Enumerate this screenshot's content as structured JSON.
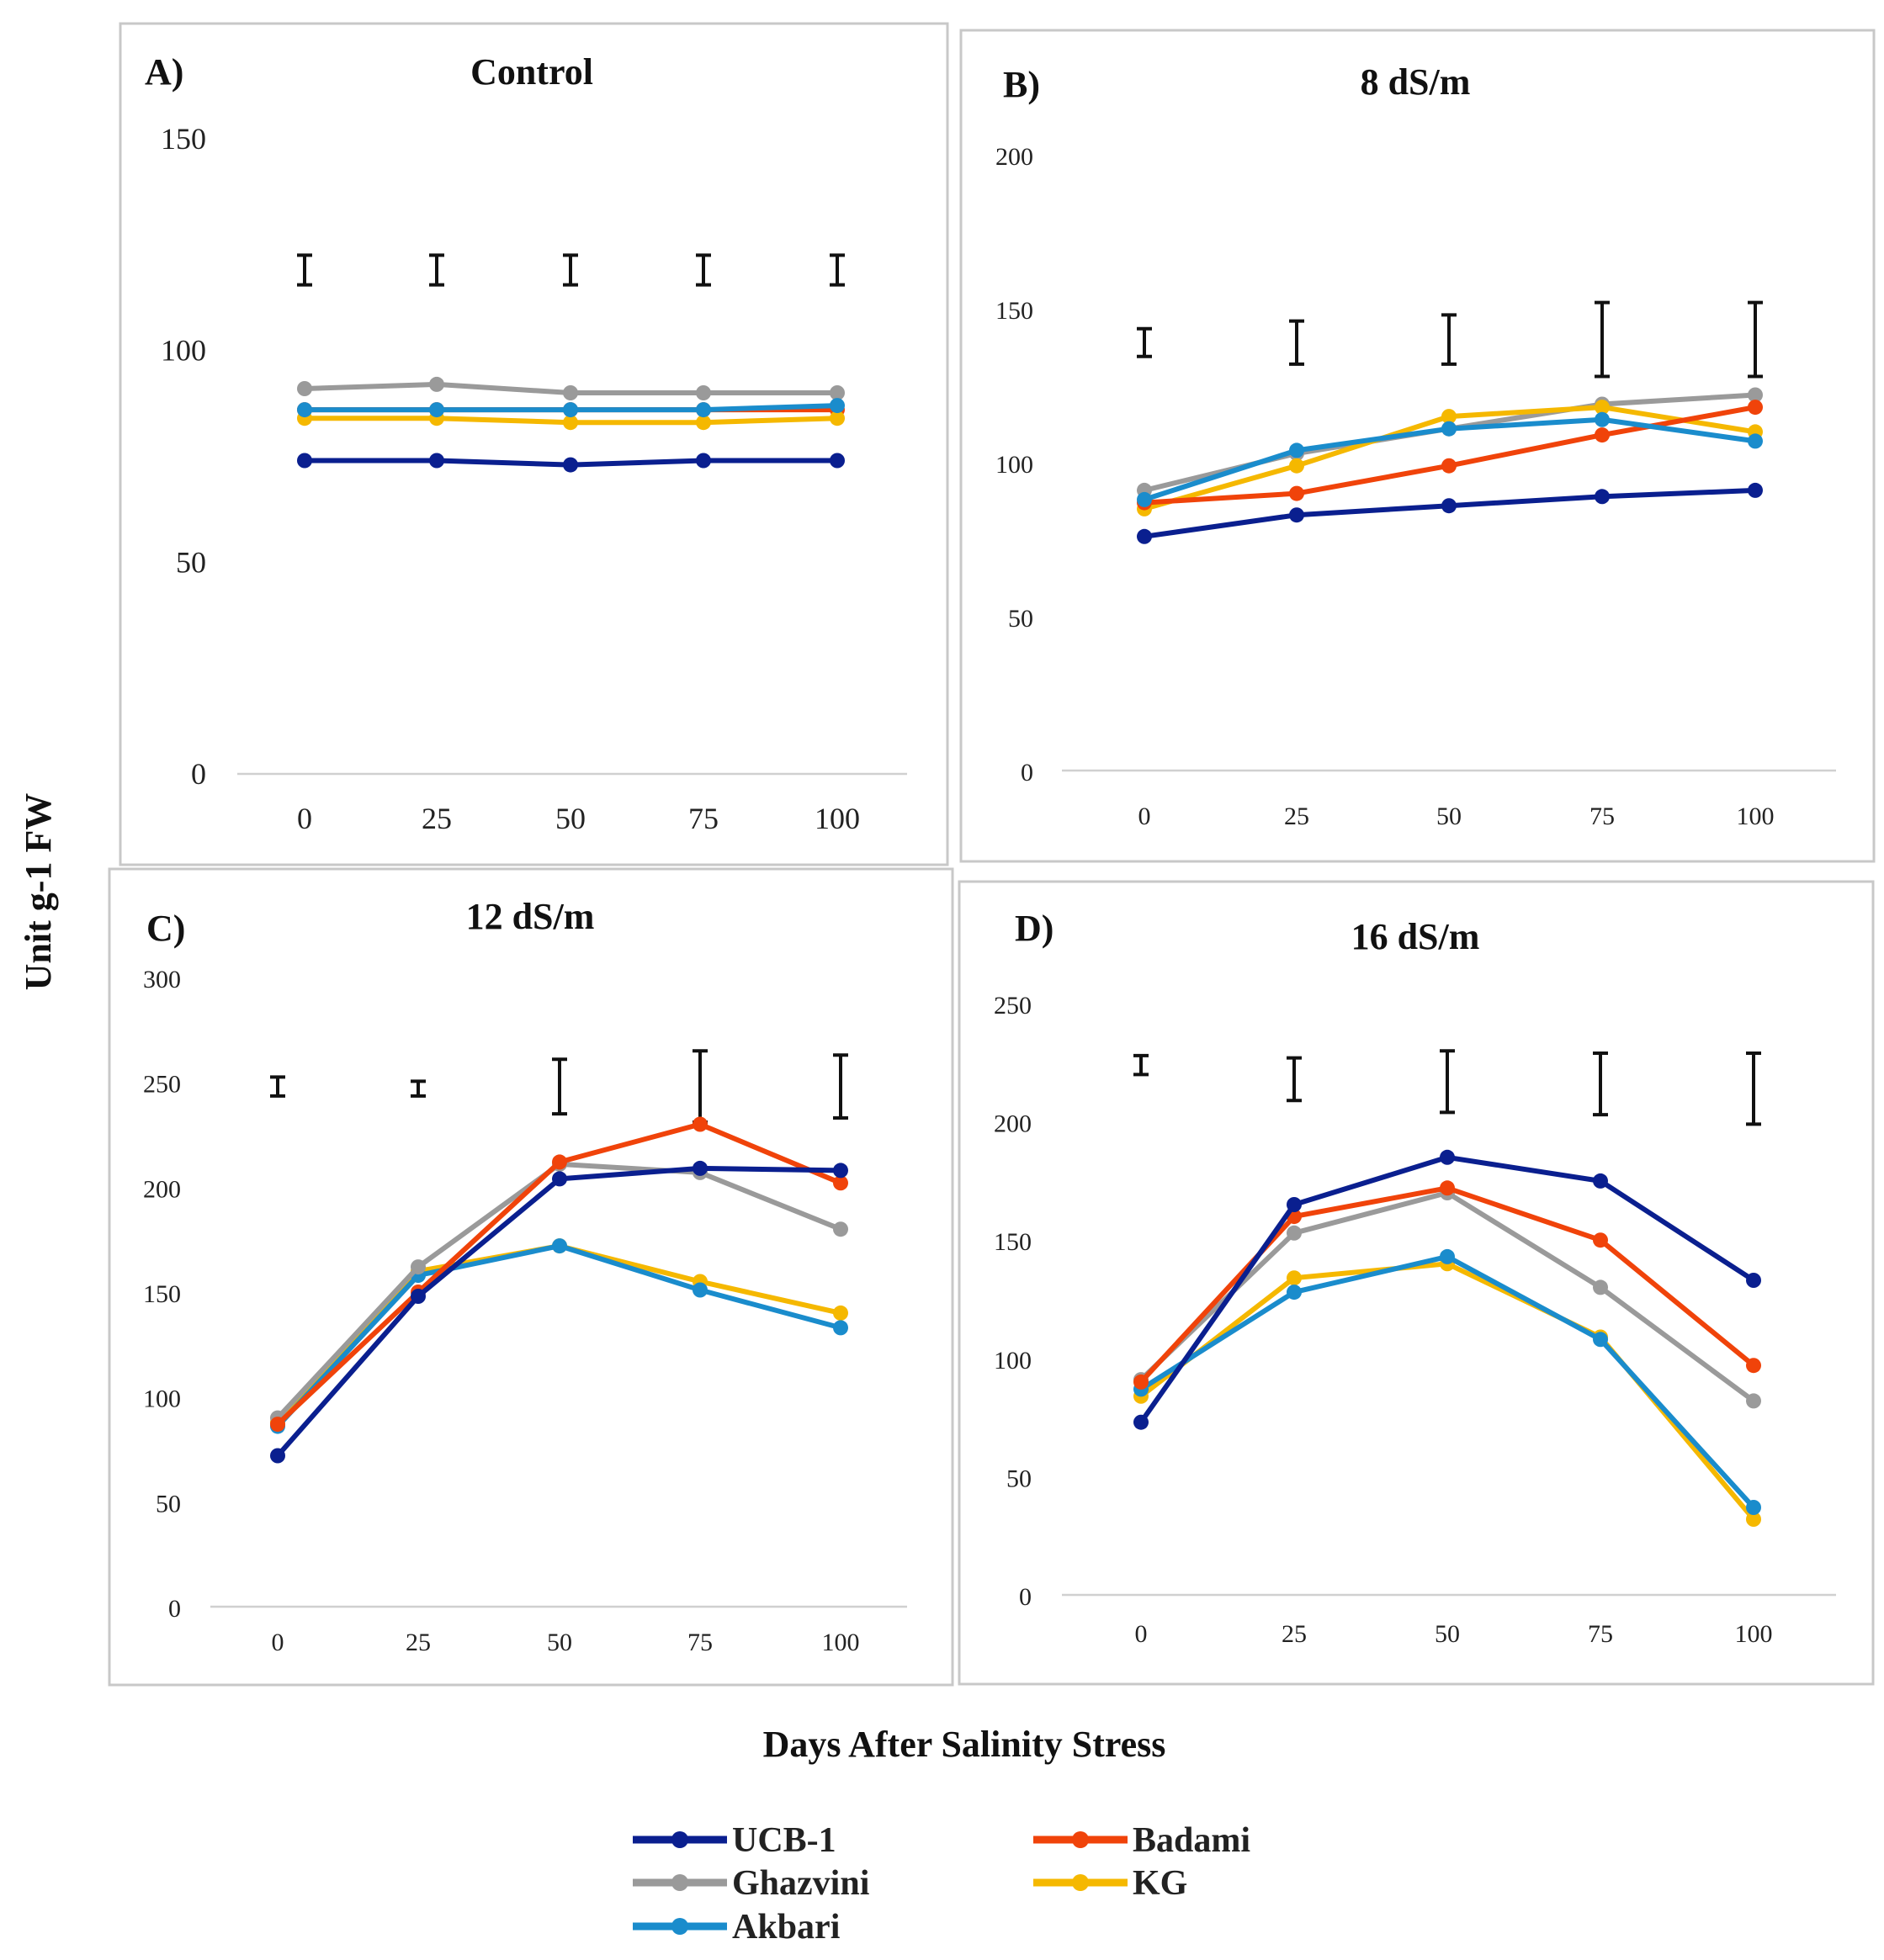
{
  "colors": {
    "UCB-1": "#0a1f8f",
    "Badami": "#f0430a",
    "Ghazvini": "#9a9a9a",
    "KG": "#f5b800",
    "Akbari": "#1a8ccc"
  },
  "y_axis_title": "Unit g-1 FW",
  "x_axis_title": "Days After Salinity Stress",
  "legend": [
    "UCB-1",
    "Badami",
    "Ghazvini",
    "KG",
    "Akbari"
  ],
  "chart_data": [
    {
      "type": "line",
      "letter": "A)",
      "title": "Control",
      "x": [
        "0",
        "25",
        "50",
        "75",
        "100"
      ],
      "ylim": [
        0,
        150
      ],
      "yticks": [
        "0",
        "50",
        "100",
        "150"
      ],
      "series": [
        {
          "name": "Ghazvini",
          "values": [
            91,
            92,
            90,
            90,
            90
          ]
        },
        {
          "name": "Badami",
          "values": [
            86,
            86,
            86,
            86,
            86
          ]
        },
        {
          "name": "KG",
          "values": [
            84,
            84,
            83,
            83,
            84
          ]
        },
        {
          "name": "Akbari",
          "values": [
            86,
            86,
            86,
            86,
            87
          ]
        },
        {
          "name": "UCB-1",
          "values": [
            74,
            74,
            73,
            74,
            74
          ]
        }
      ],
      "errorbars": [
        {
          "center": 119,
          "half": 3.5
        },
        {
          "center": 119,
          "half": 3.5
        },
        {
          "center": 119,
          "half": 3.5
        },
        {
          "center": 119,
          "half": 3.5
        },
        {
          "center": 119,
          "half": 3.5
        }
      ]
    },
    {
      "type": "line",
      "letter": "B)",
      "title": "8 dS/m",
      "x": [
        "0",
        "25",
        "50",
        "75",
        "100"
      ],
      "ylim": [
        0,
        200
      ],
      "yticks": [
        "0",
        "50",
        "100",
        "150",
        "200"
      ],
      "series": [
        {
          "name": "Ghazvini",
          "values": [
            91,
            103,
            111,
            119,
            122
          ]
        },
        {
          "name": "KG",
          "values": [
            85,
            99,
            115,
            118,
            110
          ]
        },
        {
          "name": "Badami",
          "values": [
            87,
            90,
            99,
            109,
            118
          ]
        },
        {
          "name": "Akbari",
          "values": [
            88,
            104,
            111,
            114,
            107
          ]
        },
        {
          "name": "UCB-1",
          "values": [
            76,
            83,
            86,
            89,
            91
          ]
        }
      ],
      "errorbars": [
        {
          "center": 139,
          "half": 4.5
        },
        {
          "center": 139,
          "half": 7
        },
        {
          "center": 140,
          "half": 8
        },
        {
          "center": 140,
          "half": 12
        },
        {
          "center": 140,
          "half": 12
        }
      ]
    },
    {
      "type": "line",
      "letter": "C)",
      "title": "12 dS/m",
      "x": [
        "0",
        "25",
        "50",
        "75",
        "100"
      ],
      "ylim": [
        0,
        300
      ],
      "yticks": [
        "0",
        "50",
        "100",
        "150",
        "200",
        "250",
        "300"
      ],
      "series": [
        {
          "name": "KG",
          "values": [
            88,
            160,
            172,
            155,
            140
          ]
        },
        {
          "name": "Akbari",
          "values": [
            86,
            158,
            172,
            151,
            133
          ]
        },
        {
          "name": "Ghazvini",
          "values": [
            90,
            162,
            211,
            207,
            180
          ]
        },
        {
          "name": "Badami",
          "values": [
            87,
            150,
            212,
            230,
            202
          ]
        },
        {
          "name": "UCB-1",
          "values": [
            72,
            148,
            204,
            209,
            208
          ]
        }
      ],
      "errorbars": [
        {
          "center": 248,
          "half": 4.5
        },
        {
          "center": 247,
          "half": 3.5
        },
        {
          "center": 248,
          "half": 13
        },
        {
          "center": 248,
          "half": 17
        },
        {
          "center": 248,
          "half": 15
        }
      ]
    },
    {
      "type": "line",
      "letter": "D)",
      "title": "16 dS/m",
      "x": [
        "0",
        "25",
        "50",
        "75",
        "100"
      ],
      "ylim": [
        0,
        250
      ],
      "yticks": [
        "0",
        "50",
        "100",
        "150",
        "200",
        "250"
      ],
      "series": [
        {
          "name": "KG",
          "values": [
            84,
            134,
            140,
            109,
            32
          ]
        },
        {
          "name": "Akbari",
          "values": [
            87,
            128,
            143,
            108,
            37
          ]
        },
        {
          "name": "Ghazvini",
          "values": [
            91,
            153,
            170,
            130,
            82
          ]
        },
        {
          "name": "Badami",
          "values": [
            90,
            160,
            172,
            150,
            97
          ]
        },
        {
          "name": "UCB-1",
          "values": [
            73,
            165,
            185,
            175,
            133
          ]
        }
      ],
      "errorbars": [
        {
          "center": 224,
          "half": 4
        },
        {
          "center": 218,
          "half": 9
        },
        {
          "center": 217,
          "half": 13
        },
        {
          "center": 216,
          "half": 13
        },
        {
          "center": 214,
          "half": 15
        }
      ]
    }
  ]
}
